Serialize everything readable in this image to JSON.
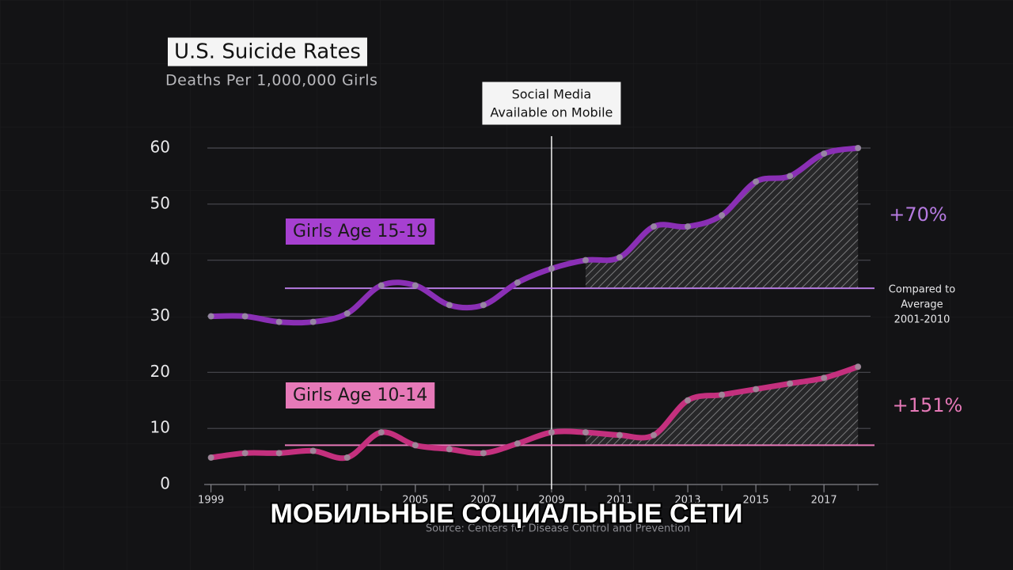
{
  "chart_data": {
    "type": "line",
    "title": "U.S. Suicide Rates",
    "subtitle": "Deaths Per 1,000,000 Girls",
    "x": [
      1999,
      2000,
      2001,
      2002,
      2003,
      2004,
      2005,
      2006,
      2007,
      2008,
      2009,
      2010,
      2011,
      2012,
      2013,
      2014,
      2015,
      2016,
      2017,
      2018
    ],
    "series": [
      {
        "name": "Girls Age 15-19",
        "color": "#8a2fb5",
        "label_color": "#a640d0",
        "values": [
          30,
          30,
          29,
          29,
          30.5,
          35.5,
          35.5,
          32,
          32,
          36,
          38.5,
          40,
          40.5,
          46,
          46,
          48,
          54,
          55,
          59,
          60
        ],
        "average": 35,
        "change": "+70%",
        "change_color": "#b57ae0"
      },
      {
        "name": "Girls Age 10-14",
        "color": "#c4307e",
        "label_color": "#e679b8",
        "values": [
          4.8,
          5.6,
          5.6,
          6,
          4.8,
          9.3,
          7,
          6.3,
          5.6,
          7.3,
          9.3,
          9.3,
          8.8,
          8.8,
          15,
          16,
          17,
          18,
          19,
          21
        ],
        "average": 7,
        "change": "+151%",
        "change_color": "#e679b8"
      }
    ],
    "xlim": [
      1998.8,
      2018.6
    ],
    "xticks": [
      1999,
      2005,
      2007,
      2009,
      2011,
      2013,
      2015,
      2017
    ],
    "ylim": [
      0,
      60
    ],
    "yticks": [
      0,
      10,
      20,
      30,
      40,
      50,
      60
    ],
    "grid": true,
    "event": {
      "x": 2009,
      "label": [
        "Social Media",
        "Available on Mobile"
      ]
    },
    "average_note": [
      "Compared to",
      "Average",
      "2001-2010"
    ],
    "caption": "МОБИЛЬНЫЕ СОЦИАЛЬНЫЕ СЕТИ",
    "source": "Source: Centers for Disease Control and Prevention"
  }
}
